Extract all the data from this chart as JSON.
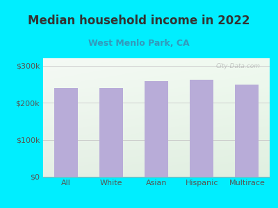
{
  "title": "Median household income in 2022",
  "subtitle": "West Menlo Park, CA",
  "categories": [
    "All",
    "White",
    "Asian",
    "Hispanic",
    "Multirace"
  ],
  "values": [
    240000,
    240000,
    258000,
    262000,
    248000
  ],
  "bar_color": "#b8acd8",
  "title_fontsize": 12,
  "subtitle_fontsize": 9,
  "subtitle_color": "#3399bb",
  "title_color": "#333333",
  "tick_label_color": "#555555",
  "background_outer": "#00eeff",
  "ylim": [
    0,
    320000
  ],
  "yticks": [
    0,
    100000,
    200000,
    300000
  ],
  "ytick_labels": [
    "$0",
    "$100k",
    "$200k",
    "$300k"
  ],
  "watermark": "City-Data.com"
}
